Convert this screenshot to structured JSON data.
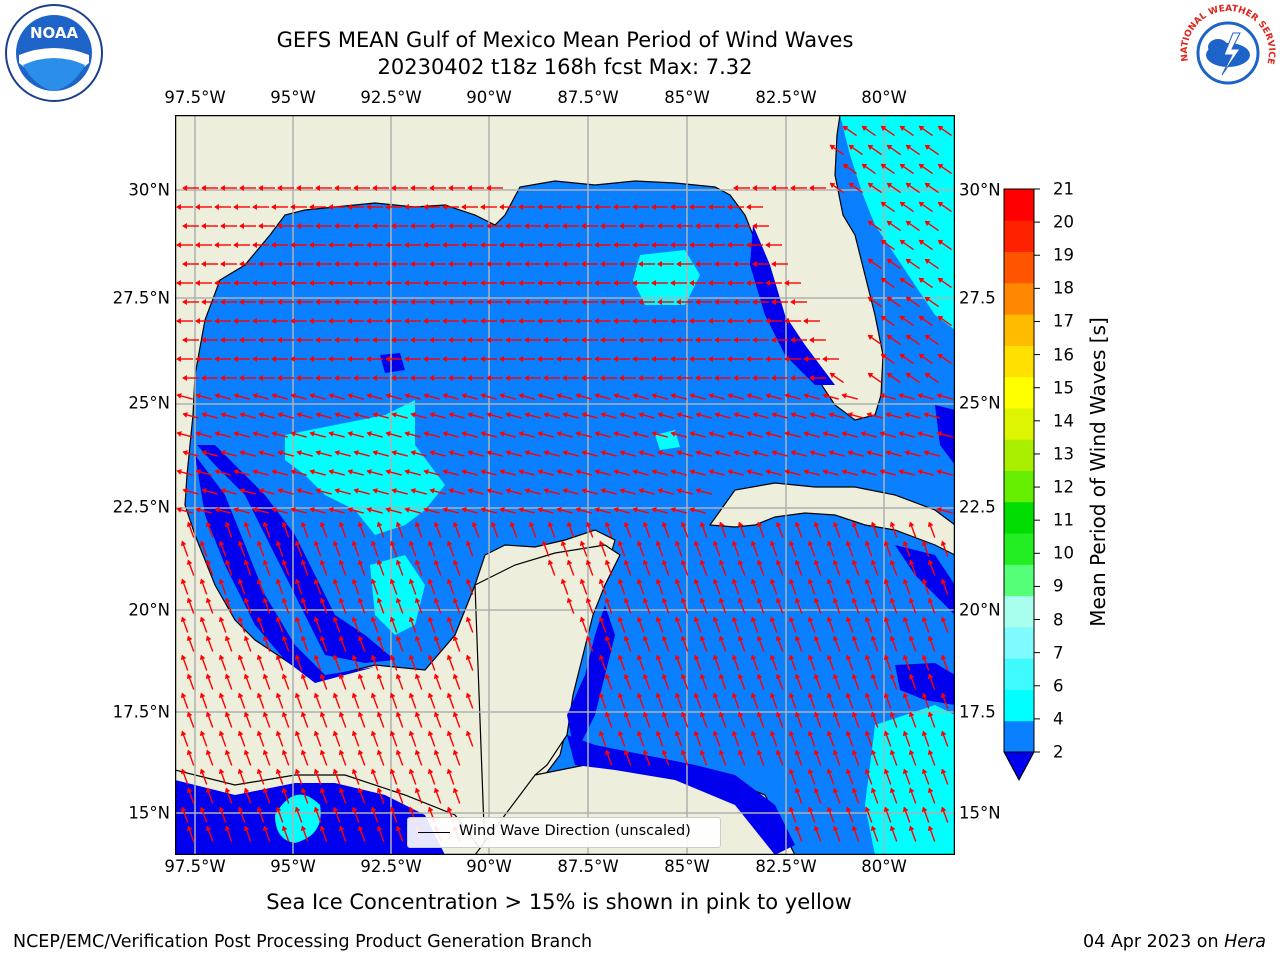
{
  "header": {
    "title_line1": "GEFS MEAN Gulf of Mexico Mean Period of Wind Waves",
    "title_line2": "20230402 t18z 168h fcst   Max: 7.32"
  },
  "logos": {
    "left": {
      "icon": "noaa-logo-icon",
      "text": "NOAA"
    },
    "right": {
      "icon": "nws-logo-icon",
      "text": "NATIONAL WEATHER SERVICE"
    }
  },
  "map": {
    "lon_labels": [
      "97.5°W",
      "95°W",
      "92.5°W",
      "90°W",
      "87.5°W",
      "85°W",
      "82.5°W",
      "80°W"
    ],
    "lat_labels_left": [
      "30°N",
      "27.5°N",
      "25°N",
      "22.5°N",
      "20°N",
      "17.5°N",
      "15°N"
    ],
    "lat_labels_right": [
      "30°N",
      "27.5",
      "25°N",
      "22.5",
      "20°N",
      "17.5",
      "15°N"
    ],
    "lon_range": [
      -98,
      -78.2
    ],
    "lat_range": [
      14,
      31.6
    ],
    "grid": true,
    "colors": {
      "land": "#eeeedc",
      "wave_2_4": "#0a7fff",
      "wave_lt2": "#0000ee",
      "wave_4_6": "#00ffff",
      "arrow": "#ff0000"
    },
    "legend_text": "Wind Wave Direction (unscaled)"
  },
  "colorbar": {
    "title": "Mean Period of Wind Waves [s]",
    "levels": [
      "2",
      "4",
      "6",
      "7",
      "8",
      "9",
      "10",
      "11",
      "12",
      "13",
      "14",
      "15",
      "16",
      "17",
      "18",
      "19",
      "20",
      "21"
    ],
    "colors": [
      "#0a7fff",
      "#00ffff",
      "#3ffaff",
      "#7ffaff",
      "#a8ffee",
      "#55ff77",
      "#22ee22",
      "#00dd00",
      "#66ee00",
      "#aaee00",
      "#ddf500",
      "#ffff00",
      "#ffe000",
      "#ffbb00",
      "#ff8800",
      "#ff5500",
      "#ff2200",
      "#ff0000"
    ],
    "under_color": "#0000ee"
  },
  "footer": {
    "caption": "Sea Ice Concentration > 15% is shown in pink to yellow",
    "left": "NCEP/EMC/Verification Post Processing Product Generation Branch",
    "right_date": "04 Apr 2023 on ",
    "right_host": "Hera"
  }
}
